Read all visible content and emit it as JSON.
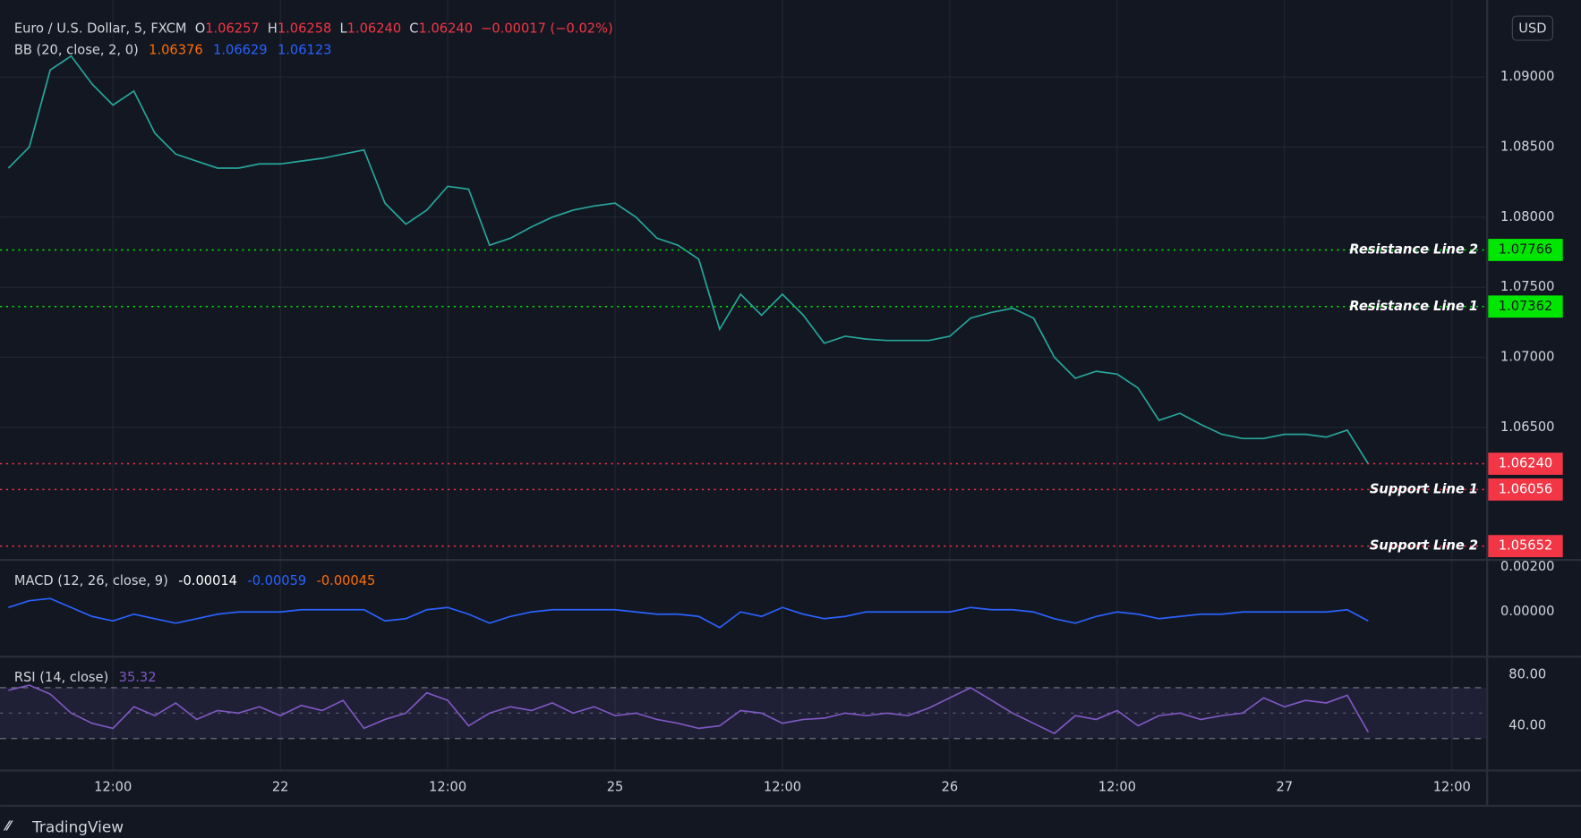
{
  "legend": {
    "symbol": "Euro / U.S. Dollar, 5, FXCM",
    "o": "O",
    "open": "1.06257",
    "h": "H",
    "high": "1.06258",
    "l": "L",
    "low": "1.06240",
    "c": "C",
    "close": "1.06240",
    "change": "−0.00017 (−0.02%)",
    "bb": "BB (20, close, 2, 0)",
    "bb_basis": "1.06376",
    "bb_upper": "1.06629",
    "bb_lower": "1.06123",
    "macd": "MACD (12, 26, close, 9)",
    "macd_hist": "-0.00014",
    "macd_line": "-0.00059",
    "macd_signal": "-0.00045",
    "rsi": "RSI (14, close)",
    "rsi_value": "35.32",
    "currency": "USD",
    "brand": "TradingView"
  },
  "chart_data": [
    {
      "type": "line",
      "color": "#26a69a",
      "categories": [
        null,
        null,
        null,
        null,
        null,
        "12:00",
        null,
        null,
        null,
        null,
        null,
        null,
        null,
        "22",
        null,
        null,
        null,
        null,
        null,
        null,
        null,
        "12:00",
        null,
        null,
        null,
        null,
        null,
        null,
        null,
        "25",
        null,
        null,
        null,
        null,
        null,
        null,
        null,
        "12:00",
        null,
        null,
        null,
        null,
        null,
        null,
        null,
        "26",
        null,
        null,
        null,
        null,
        null,
        null,
        null,
        "12:00",
        null,
        null,
        null,
        null,
        null,
        null,
        null,
        "27",
        null,
        null,
        null,
        null,
        null,
        null,
        null,
        "12:00"
      ],
      "values": [
        1.0835,
        1.085,
        1.0905,
        1.0915,
        1.0895,
        1.088,
        1.089,
        1.086,
        1.0845,
        1.084,
        1.0835,
        1.0835,
        1.0838,
        1.0838,
        1.084,
        1.0842,
        1.0845,
        1.0848,
        1.081,
        1.0795,
        1.0805,
        1.0822,
        1.082,
        1.078,
        1.0785,
        1.0793,
        1.08,
        1.0805,
        1.0808,
        1.081,
        1.08,
        1.0785,
        1.078,
        1.077,
        1.072,
        1.0745,
        1.073,
        1.0745,
        1.073,
        1.071,
        1.0715,
        1.0713,
        1.0712,
        1.0712,
        1.0712,
        1.0715,
        1.0728,
        1.0732,
        1.0735,
        1.0728,
        1.07,
        1.0685,
        1.069,
        1.0688,
        1.0678,
        1.0655,
        1.066,
        1.0652,
        1.0645,
        1.0642,
        1.0642,
        1.0645,
        1.0645,
        1.0643,
        1.0648,
        1.0624,
        null,
        null,
        null,
        null
      ],
      "ylim": [
        1.0556,
        1.0955
      ],
      "yticks": [
        {
          "value": 1.09,
          "label": "1.09000"
        },
        {
          "value": 1.085,
          "label": "1.08500"
        },
        {
          "value": 1.08,
          "label": "1.08000"
        },
        {
          "value": 1.075,
          "label": "1.07500"
        },
        {
          "value": 1.07,
          "label": "1.07000"
        },
        {
          "value": 1.065,
          "label": "1.06500"
        }
      ],
      "grid": true,
      "levels": {
        "names": [
          "Resistance Line 2",
          "Resistance Line 1",
          null,
          "Support Line 1",
          "Support Line 2"
        ],
        "values": [
          1.07766,
          1.07362,
          1.0624,
          1.06056,
          1.05652
        ],
        "value_labels": [
          "1.07766",
          "1.07362",
          "1.06240",
          "1.06056",
          "1.05652"
        ],
        "colors": [
          "#00e600",
          "#00e600",
          "#f23645",
          "#f23645",
          "#f23645"
        ]
      }
    },
    {
      "type": "line",
      "color": "#2962ff",
      "values": [
        0.0002,
        0.0005,
        0.0006,
        0.0002,
        -0.0002,
        -0.0004,
        -0.0001,
        -0.0003,
        -0.0005,
        -0.0003,
        -0.0001,
        0,
        0,
        0,
        0.0001,
        0.0001,
        0.0001,
        0.0001,
        -0.0004,
        -0.0003,
        0.0001,
        0.0002,
        -0.0001,
        -0.0005,
        -0.0002,
        0,
        0.0001,
        0.0001,
        0.0001,
        0.0001,
        0,
        -0.0001,
        -0.0001,
        -0.0002,
        -0.0007,
        0,
        -0.0002,
        0.0002,
        -0.0001,
        -0.0003,
        -0.0002,
        0,
        0,
        0,
        0,
        0,
        0.0002,
        0.0001,
        0.0001,
        0,
        -0.0003,
        -0.0005,
        -0.0002,
        0,
        -0.0001,
        -0.0003,
        -0.0002,
        -0.0001,
        -0.0001,
        0,
        0,
        0,
        0,
        0,
        0.0001,
        -0.0004,
        null,
        null,
        null,
        null
      ],
      "ylim": [
        -0.00195,
        0.00227
      ],
      "yticks": [
        {
          "value": 0.002,
          "label": "0.00200"
        },
        {
          "value": 0,
          "label": "0.00000"
        }
      ]
    },
    {
      "type": "line",
      "color": "#7e57c2",
      "values": [
        68,
        72,
        65,
        50,
        42,
        38,
        55,
        48,
        58,
        45,
        52,
        50,
        55,
        48,
        56,
        52,
        60,
        38,
        45,
        50,
        66,
        60,
        40,
        50,
        55,
        52,
        58,
        50,
        55,
        48,
        50,
        45,
        42,
        38,
        40,
        52,
        50,
        42,
        45,
        46,
        50,
        48,
        50,
        48,
        54,
        62,
        70,
        60,
        50,
        42,
        34,
        48,
        45,
        52,
        40,
        48,
        50,
        45,
        48,
        50,
        62,
        55,
        60,
        58,
        64,
        35,
        null,
        null,
        null,
        null
      ],
      "ylim": [
        5.6,
        93.6
      ],
      "yticks": [
        {
          "value": 80,
          "label": "80.00"
        },
        {
          "value": 40,
          "label": "40.00"
        }
      ],
      "band": [
        30,
        70
      ]
    }
  ]
}
